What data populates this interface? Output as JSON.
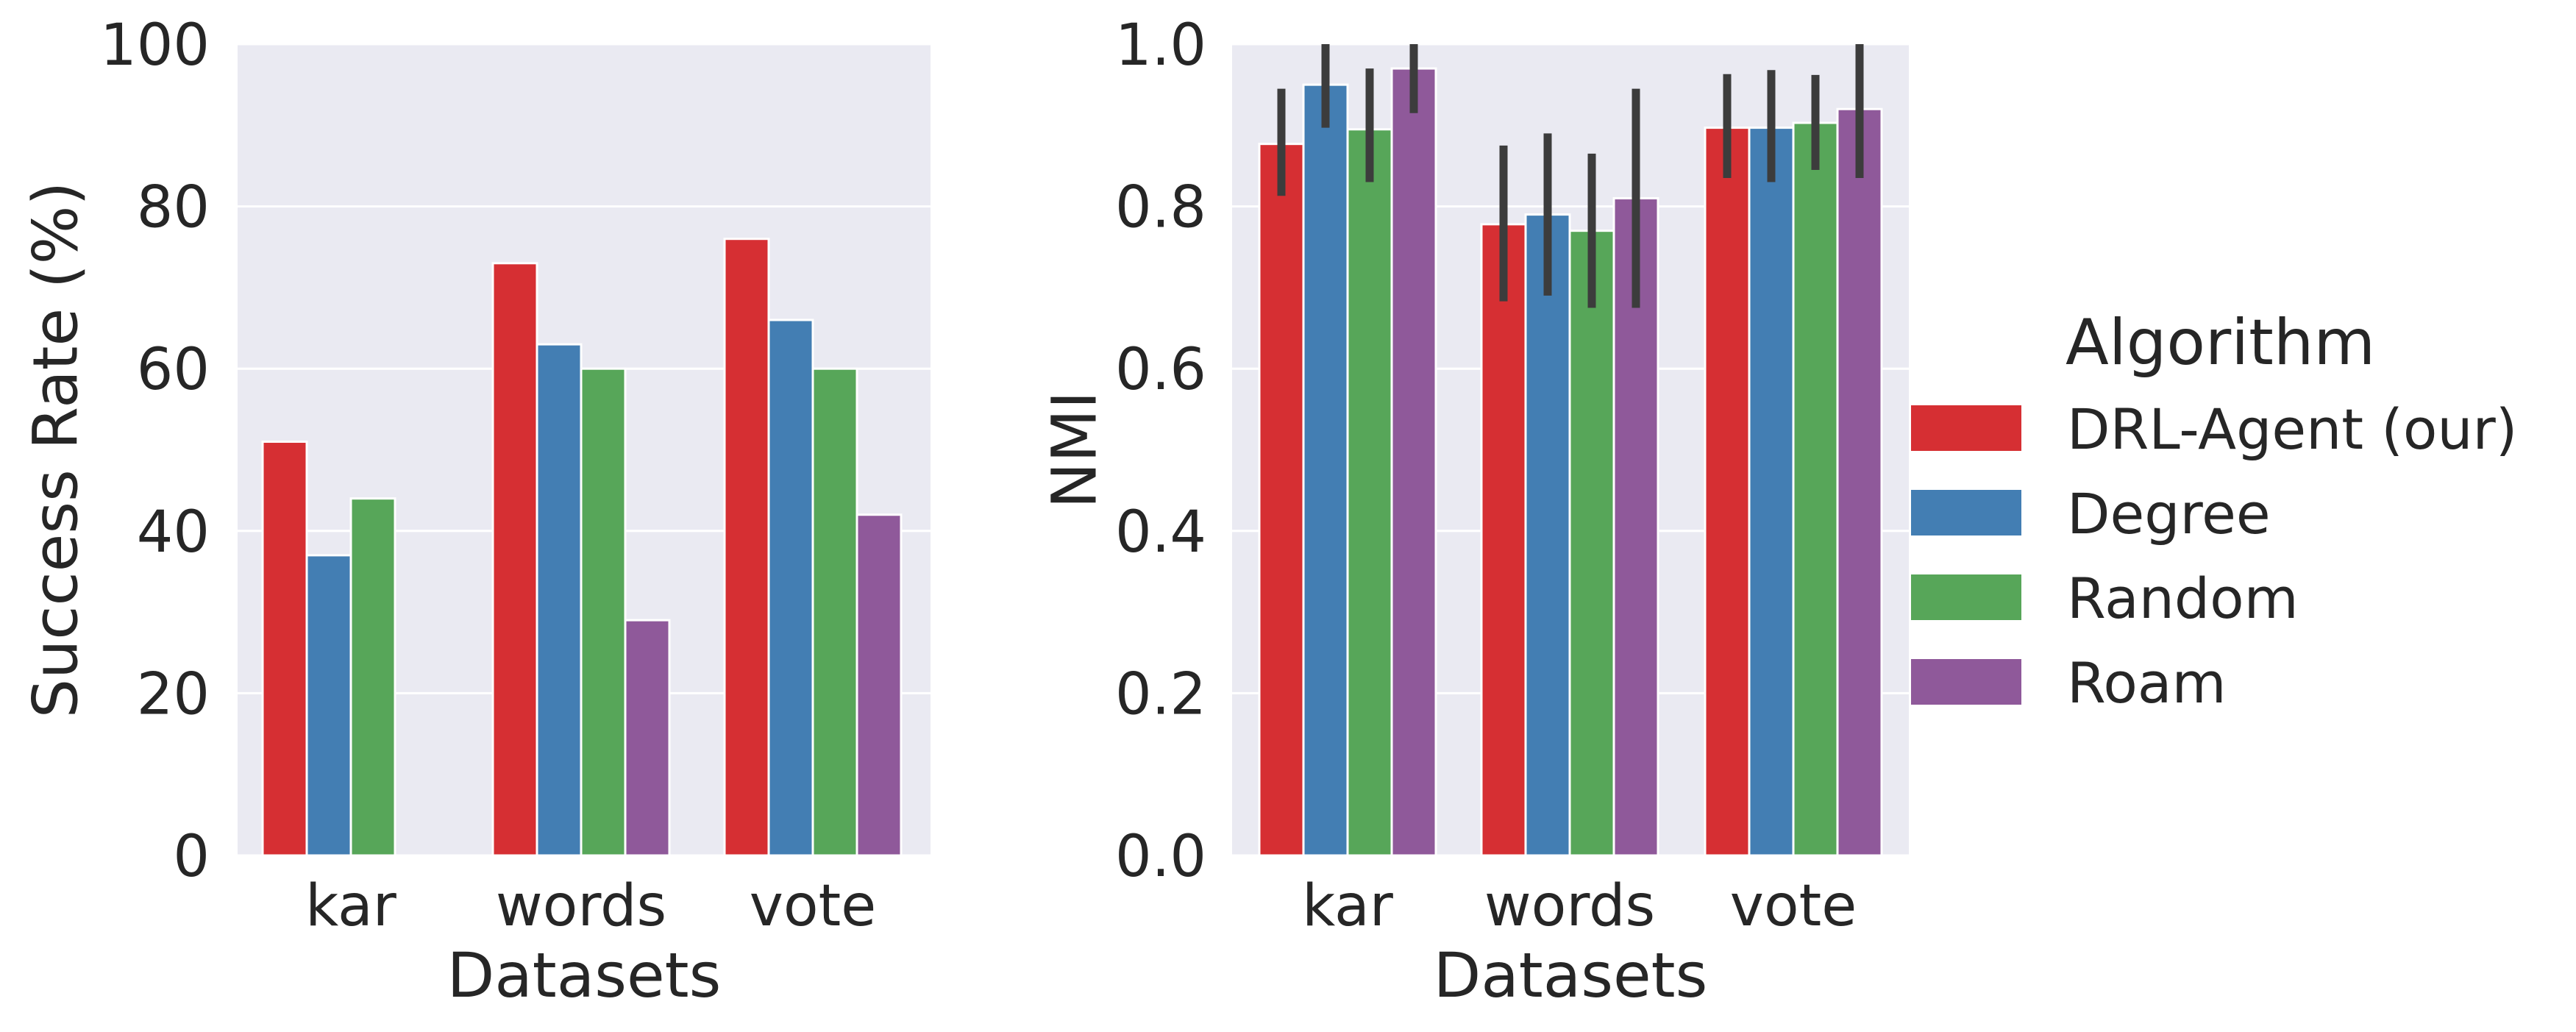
{
  "chart_data": [
    {
      "type": "bar",
      "xlabel": "Datasets",
      "ylabel": "Success Rate (%)",
      "ylim": [
        0,
        100
      ],
      "yticks": [
        0,
        20,
        40,
        60,
        80,
        100
      ],
      "ytick_labels": [
        "0",
        "20",
        "40",
        "60",
        "80",
        "100"
      ],
      "categories": [
        "kar",
        "words",
        "vote"
      ],
      "grid": true,
      "series": [
        {
          "name": "DRL-Agent (our)",
          "color": "#d62f33",
          "values": [
            51,
            73,
            76
          ]
        },
        {
          "name": "Degree",
          "color": "#437eb3",
          "values": [
            37,
            63,
            66
          ]
        },
        {
          "name": "Random",
          "color": "#57a659",
          "values": [
            44,
            60,
            60
          ]
        },
        {
          "name": "Roam",
          "color": "#8f599a",
          "values": [
            null,
            29,
            42
          ]
        }
      ]
    },
    {
      "type": "bar",
      "xlabel": "Datasets",
      "ylabel": "NMI",
      "ylim": [
        0,
        1
      ],
      "yticks": [
        0,
        0.2,
        0.4,
        0.6,
        0.8,
        1.0
      ],
      "ytick_labels": [
        "0.0",
        "0.2",
        "0.4",
        "0.6",
        "0.8",
        "1.0"
      ],
      "categories": [
        "kar",
        "words",
        "vote"
      ],
      "grid": true,
      "series": [
        {
          "name": "DRL-Agent (our)",
          "color": "#d62f33",
          "values": [
            0.877,
            0.778,
            0.897
          ],
          "error_low": [
            0.813,
            0.683,
            0.835
          ],
          "error_high": [
            0.945,
            0.875,
            0.963
          ]
        },
        {
          "name": "Degree",
          "color": "#437eb3",
          "values": [
            0.95,
            0.79,
            0.897
          ],
          "error_low": [
            0.897,
            0.69,
            0.83
          ],
          "error_high": [
            1.0,
            0.89,
            0.968
          ]
        },
        {
          "name": "Random",
          "color": "#57a659",
          "values": [
            0.895,
            0.77,
            0.903
          ],
          "error_low": [
            0.83,
            0.675,
            0.845
          ],
          "error_high": [
            0.97,
            0.865,
            0.962
          ]
        },
        {
          "name": "Roam",
          "color": "#8f599a",
          "values": [
            0.97,
            0.81,
            0.92
          ],
          "error_low": [
            0.915,
            0.675,
            0.835
          ],
          "error_high": [
            1.0,
            0.945,
            1.0
          ]
        }
      ]
    }
  ],
  "legend": {
    "title": "Algorithm",
    "placement": "right",
    "entries": [
      {
        "label": "DRL-Agent (our)",
        "color": "#d62f33"
      },
      {
        "label": "Degree",
        "color": "#437eb3"
      },
      {
        "label": "Random",
        "color": "#57a659"
      },
      {
        "label": "Roam",
        "color": "#8f599a"
      }
    ]
  },
  "colors": {
    "plot_background": "#eaeaf2",
    "grid": "#ffffff",
    "text": "#262626",
    "error_bar": "#3c3c3c"
  }
}
